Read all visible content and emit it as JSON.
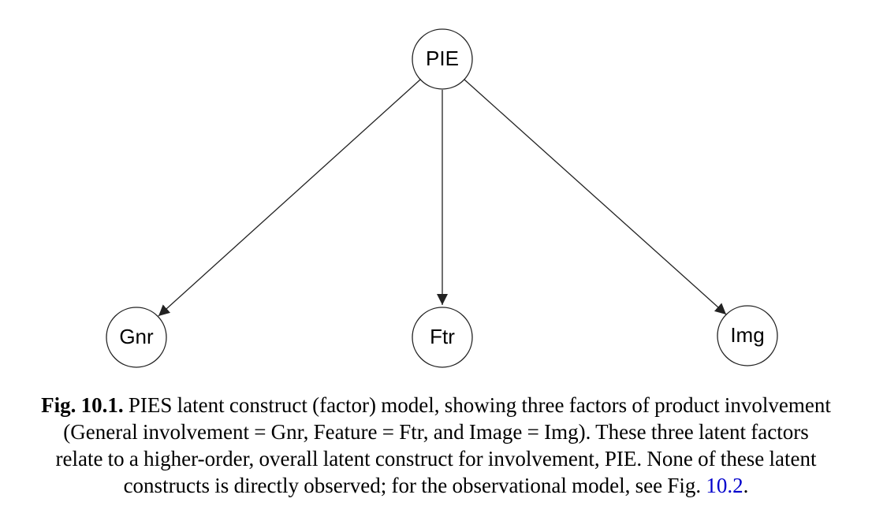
{
  "diagram": {
    "nodes": {
      "pie": {
        "label": "PIE"
      },
      "gnr": {
        "label": "Gnr"
      },
      "ftr": {
        "label": "Ftr"
      },
      "img": {
        "label": "Img"
      }
    },
    "edges": [
      {
        "from": "PIE",
        "to": "Gnr"
      },
      {
        "from": "PIE",
        "to": "Ftr"
      },
      {
        "from": "PIE",
        "to": "Img"
      }
    ]
  },
  "caption": {
    "label": "Fig. 10.1.",
    "line1": "PIES latent construct (factor) model, showing three factors of product involvement",
    "line2": "(General involvement = Gnr, Feature = Ftr, and Image = Img). These three latent factors",
    "line3": "relate to a higher-order, overall latent construct for involvement, PIE. None of these latent",
    "line4_before": "constructs is directly observed; for the observational model, see Fig.",
    "link": "10.2",
    "line4_after": ".",
    "link_color": "#0000cc"
  }
}
